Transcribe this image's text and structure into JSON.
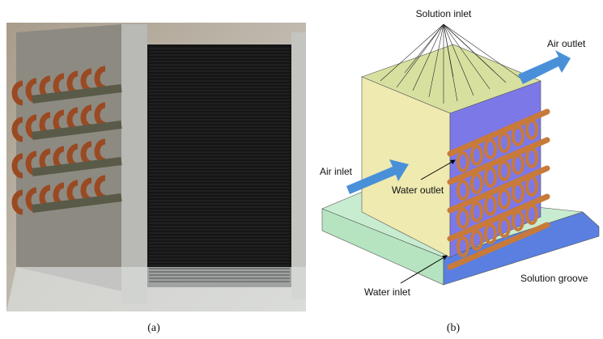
{
  "panel_a": {
    "caption": "(a)"
  },
  "panel_b": {
    "caption": "(b)",
    "labels": {
      "solution_inlet": "Solution inlet",
      "air_outlet": "Air outlet",
      "air_inlet": "Air inlet",
      "water_outlet": "Water outlet",
      "water_inlet": "Water inlet",
      "solution_groove": "Solution groove"
    }
  }
}
